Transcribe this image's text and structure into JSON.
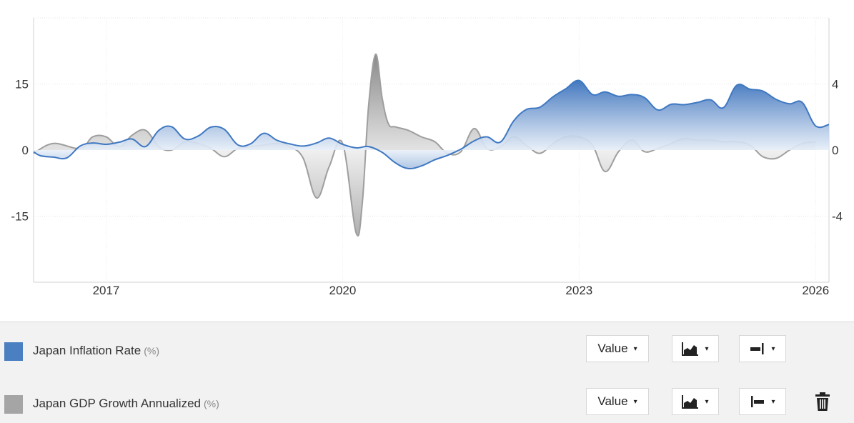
{
  "chart_data": {
    "type": "area",
    "x_ticks": [
      "2017",
      "2020",
      "2023",
      "2026"
    ],
    "x_range": [
      2016.08,
      2026.17
    ],
    "left_axis": {
      "ticks": [
        "15",
        "0",
        "-15"
      ],
      "range": [
        -30,
        30
      ]
    },
    "right_axis": {
      "ticks": [
        "4",
        "0",
        "-4"
      ],
      "range": [
        -8,
        8
      ]
    },
    "grid": true,
    "series": [
      {
        "name": "Japan Inflation Rate",
        "unit": "(%)",
        "color": "#4a7fc1",
        "axis": "left",
        "x": [
          2016.08,
          2016.17,
          2016.33,
          2016.5,
          2016.67,
          2016.83,
          2017.0,
          2017.17,
          2017.33,
          2017.5,
          2017.67,
          2017.83,
          2018.0,
          2018.17,
          2018.33,
          2018.5,
          2018.67,
          2018.83,
          2019.0,
          2019.17,
          2019.33,
          2019.5,
          2019.67,
          2019.83,
          2020.0,
          2020.17,
          2020.33,
          2020.5,
          2020.67,
          2020.83,
          2021.0,
          2021.17,
          2021.33,
          2021.5,
          2021.67,
          2021.83,
          2022.0,
          2022.17,
          2022.33,
          2022.5,
          2022.67,
          2022.83,
          2023.0,
          2023.17,
          2023.33,
          2023.5,
          2023.67,
          2023.83,
          2024.0,
          2024.17,
          2024.33,
          2024.5,
          2024.67,
          2024.83,
          2025.0,
          2025.17,
          2025.33,
          2025.5,
          2025.67,
          2025.83,
          2026.0,
          2026.17
        ],
        "values": [
          -0.4,
          -1.3,
          -1.6,
          -1.8,
          0.9,
          1.6,
          1.3,
          1.8,
          2.5,
          0.8,
          4.5,
          5.3,
          2.5,
          3.2,
          5.2,
          4.7,
          1.2,
          1.4,
          3.8,
          2.2,
          1.4,
          0.9,
          1.6,
          2.7,
          1.3,
          0.5,
          0.8,
          -0.5,
          -2.9,
          -4.2,
          -3.6,
          -2.2,
          -1.2,
          0.2,
          2.1,
          3.0,
          1.8,
          6.6,
          9.2,
          9.7,
          12.1,
          13.9,
          15.8,
          12.6,
          13.2,
          12.2,
          12.6,
          11.9,
          9.1,
          10.4,
          10.3,
          10.8,
          11.4,
          9.6,
          14.7,
          13.8,
          13.4,
          11.5,
          10.5,
          10.8,
          5.5,
          5.8
        ]
      },
      {
        "name": "Japan GDP Growth Annualized",
        "unit": "(%)",
        "color": "#a5a5a5",
        "axis": "right",
        "x": [
          2016.08,
          2016.33,
          2016.67,
          2016.83,
          2017.0,
          2017.17,
          2017.33,
          2017.5,
          2017.67,
          2017.83,
          2018.0,
          2018.17,
          2018.33,
          2018.5,
          2018.67,
          2018.83,
          2019.0,
          2019.17,
          2019.33,
          2019.5,
          2019.67,
          2019.83,
          2020.0,
          2020.17,
          2020.25,
          2020.33,
          2020.42,
          2020.5,
          2020.58,
          2020.67,
          2020.83,
          2021.0,
          2021.17,
          2021.33,
          2021.5,
          2021.67,
          2021.83,
          2022.0,
          2022.17,
          2022.33,
          2022.5,
          2022.67,
          2022.83,
          2023.0,
          2023.17,
          2023.33,
          2023.5,
          2023.67,
          2023.83,
          2024.0,
          2024.17,
          2024.33,
          2024.5,
          2024.67,
          2024.83,
          2025.0,
          2025.17,
          2025.33,
          2025.5,
          2025.67,
          2025.83,
          2026.0
        ],
        "values": [
          -0.2,
          0.4,
          0.1,
          0.8,
          0.8,
          0.2,
          0.9,
          1.2,
          0.2,
          0.0,
          0.5,
          0.4,
          0.1,
          -0.4,
          0.1,
          0.2,
          0.3,
          0.4,
          0.2,
          -0.5,
          -2.9,
          -1.0,
          0.4,
          -5.0,
          -3.2,
          2.7,
          5.8,
          3.2,
          1.6,
          1.4,
          1.2,
          0.8,
          0.5,
          -0.2,
          -0.1,
          1.3,
          0.1,
          0.2,
          0.8,
          0.3,
          -0.2,
          0.4,
          0.8,
          0.8,
          0.3,
          -1.3,
          -0.1,
          0.6,
          -0.1,
          0.1,
          0.4,
          0.7,
          0.6,
          0.6,
          0.5,
          0.5,
          0.3,
          -0.4,
          -0.5,
          0.0,
          0.4,
          0.5
        ]
      }
    ]
  },
  "controls": {
    "value_label": "Value",
    "caret": "▾",
    "chart_type_icon": "area-chart-icon",
    "axis_icons": [
      "right-axis-icon",
      "left-axis-icon"
    ],
    "delete_icon": "trash-icon"
  }
}
